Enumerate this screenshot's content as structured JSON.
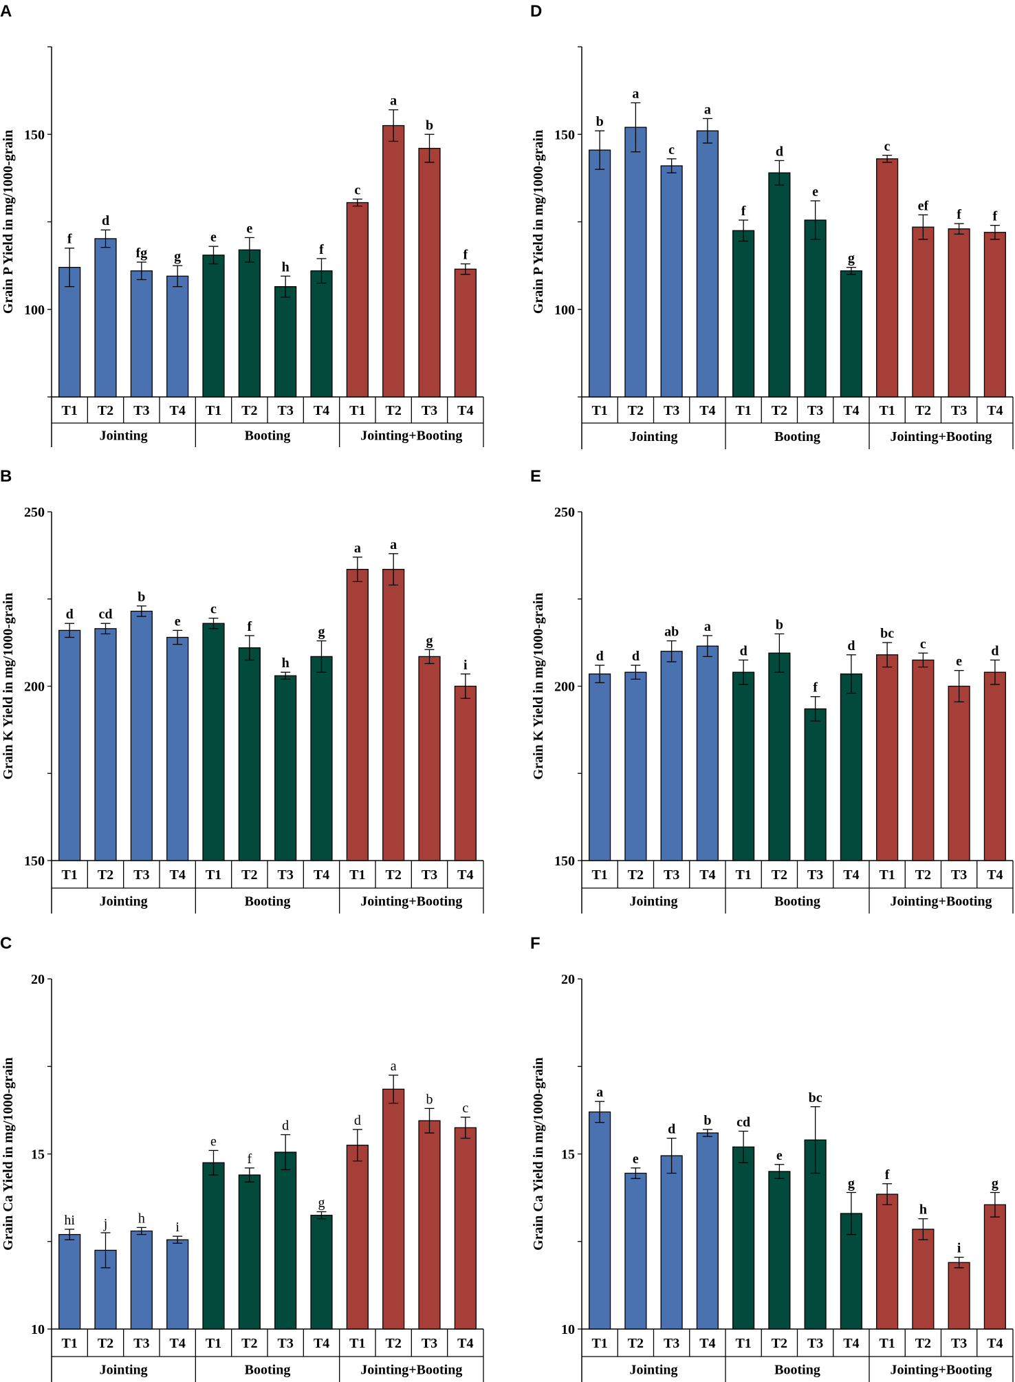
{
  "colors": {
    "jointing": "#4a72b0",
    "booting": "#024a3c",
    "jointing_booting": "#a63f37"
  },
  "chart_data": [
    {
      "panel": "A",
      "type": "bar",
      "ylabel": "Grain P Yield in mg/1000-grain",
      "ylim": [
        75,
        175
      ],
      "yticks": [
        100,
        150
      ],
      "ytick_labels": [
        "100",
        "150"
      ],
      "categories": [
        "T1",
        "T2",
        "T3",
        "T4",
        "T1",
        "T2",
        "T3",
        "T4",
        "T1",
        "T2",
        "T3",
        "T4"
      ],
      "groups": [
        "Jointing",
        "Booting",
        "Jointing+Booting"
      ],
      "values": [
        112,
        120.2,
        111,
        109.5,
        115.5,
        117,
        106.5,
        111,
        130.5,
        152.5,
        146,
        111.5
      ],
      "errors": [
        5.5,
        2.5,
        2.5,
        3,
        2.5,
        3.5,
        3,
        3.5,
        1,
        4.5,
        4,
        1.5
      ],
      "letters": [
        "f",
        "d",
        "fg",
        "g",
        "e",
        "e",
        "h",
        "f",
        "c",
        "a",
        "b",
        "f"
      ],
      "letters_bold": true
    },
    {
      "panel": "B",
      "type": "bar",
      "ylabel": "Grain K Yield in mg/1000-grain",
      "ylim": [
        150,
        250
      ],
      "yticks": [
        150,
        200,
        250
      ],
      "ytick_labels": [
        "150",
        "200",
        "250"
      ],
      "categories": [
        "T1",
        "T2",
        "T3",
        "T4",
        "T1",
        "T2",
        "T3",
        "T4",
        "T1",
        "T2",
        "T3",
        "T4"
      ],
      "groups": [
        "Jointing",
        "Booting",
        "Jointing+Booting"
      ],
      "values": [
        216,
        216.5,
        221.5,
        214,
        218,
        211,
        203,
        208.5,
        233.5,
        233.5,
        208.5,
        200
      ],
      "errors": [
        2,
        1.5,
        1.5,
        2,
        1.5,
        3.5,
        1,
        4.5,
        3.5,
        4.5,
        2,
        3.5
      ],
      "letters": [
        "d",
        "cd",
        "b",
        "e",
        "c",
        "f",
        "h",
        "g",
        "a",
        "a",
        "g",
        "i"
      ],
      "letters_bold": true
    },
    {
      "panel": "C",
      "type": "bar",
      "ylabel": "Grain Ca Yield in mg/1000-grain",
      "ylim": [
        10,
        20
      ],
      "yticks": [
        10,
        15,
        20
      ],
      "ytick_labels": [
        "10",
        "15",
        "20"
      ],
      "categories": [
        "T1",
        "T2",
        "T3",
        "T4",
        "T1",
        "T2",
        "T3",
        "T4",
        "T1",
        "T2",
        "T3",
        "T4"
      ],
      "groups": [
        "Jointing",
        "Booting",
        "Jointing+Booting"
      ],
      "values": [
        12.7,
        12.25,
        12.8,
        12.55,
        14.75,
        14.4,
        15.05,
        13.25,
        15.25,
        16.85,
        15.95,
        15.75
      ],
      "errors": [
        0.15,
        0.5,
        0.1,
        0.1,
        0.35,
        0.2,
        0.5,
        0.1,
        0.45,
        0.4,
        0.35,
        0.3
      ],
      "letters": [
        "hi",
        "j",
        "h",
        "i",
        "e",
        "f",
        "d",
        "g",
        "d",
        "a",
        "b",
        "c"
      ],
      "letters_bold": false
    },
    {
      "panel": "D",
      "type": "bar",
      "ylabel": "Grain P Yield in mg/1000-grain",
      "ylim": [
        75,
        175
      ],
      "yticks": [
        100,
        150
      ],
      "ytick_labels": [
        "100",
        "150"
      ],
      "categories": [
        "T1",
        "T2",
        "T3",
        "T4",
        "T1",
        "T2",
        "T3",
        "T4",
        "T1",
        "T2",
        "T3",
        "T4"
      ],
      "groups": [
        "Jointing",
        "Booting",
        "Jointing+Booting"
      ],
      "values": [
        145.5,
        152,
        141,
        151,
        122.5,
        139,
        125.5,
        111,
        143,
        123.5,
        123,
        122
      ],
      "errors": [
        5.5,
        7,
        2,
        3.5,
        3,
        3.5,
        5.5,
        1,
        1,
        3.5,
        1.5,
        2
      ],
      "letters": [
        "b",
        "a",
        "c",
        "a",
        "f",
        "d",
        "e",
        "g",
        "c",
        "ef",
        "f",
        "f"
      ],
      "letters_bold": true
    },
    {
      "panel": "E",
      "type": "bar",
      "ylabel": "Grain K Yield in mg/1000-grain",
      "ylim": [
        150,
        250
      ],
      "yticks": [
        150,
        200,
        250
      ],
      "ytick_labels": [
        "150",
        "200",
        "250"
      ],
      "categories": [
        "T1",
        "T2",
        "T3",
        "T4",
        "T1",
        "T2",
        "T3",
        "T4",
        "T1",
        "T2",
        "T3",
        "T4"
      ],
      "groups": [
        "Jointing",
        "Booting",
        "Jointing+Booting"
      ],
      "values": [
        203.5,
        204,
        210,
        211.5,
        204,
        209.5,
        193.5,
        203.5,
        209,
        207.5,
        200,
        204
      ],
      "errors": [
        2.5,
        2,
        3,
        3,
        3.5,
        5.5,
        3.5,
        5.5,
        3.5,
        2,
        4.5,
        3.5
      ],
      "letters": [
        "d",
        "d",
        "ab",
        "a",
        "d",
        "b",
        "f",
        "d",
        "bc",
        "c",
        "e",
        "d"
      ],
      "letters_bold": true
    },
    {
      "panel": "F",
      "type": "bar",
      "ylabel": "Grain Ca Yield in mg/1000-grain",
      "ylim": [
        10,
        20
      ],
      "yticks": [
        10,
        15,
        20
      ],
      "ytick_labels": [
        "10",
        "15",
        "20"
      ],
      "categories": [
        "T1",
        "T2",
        "T3",
        "T4",
        "T1",
        "T2",
        "T3",
        "T4",
        "T1",
        "T2",
        "T3",
        "T4"
      ],
      "groups": [
        "Jointing",
        "Booting",
        "Jointing+Booting"
      ],
      "values": [
        16.2,
        14.45,
        14.95,
        15.6,
        15.2,
        14.5,
        15.4,
        13.3,
        13.85,
        12.85,
        11.9,
        13.55
      ],
      "errors": [
        0.3,
        0.15,
        0.5,
        0.1,
        0.45,
        0.2,
        0.95,
        0.6,
        0.3,
        0.3,
        0.15,
        0.35
      ],
      "letters": [
        "a",
        "e",
        "d",
        "b",
        "cd",
        "e",
        "bc",
        "g",
        "f",
        "h",
        "i",
        "g"
      ],
      "letters_bold": true
    }
  ]
}
